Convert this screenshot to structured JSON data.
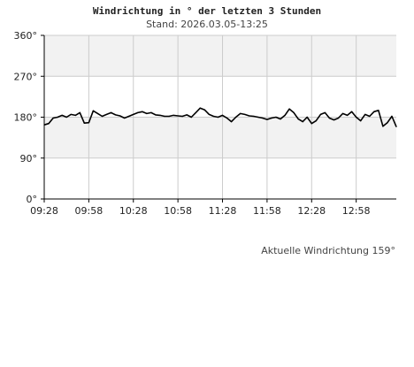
{
  "title": "Windrichtung in ° der letzten 3 Stunden",
  "subtitle": "Stand: 2026.03.05-13:25",
  "current_label": "Aktuelle Windrichtung 159°",
  "colors": {
    "band": "#f2f2f2",
    "grid": "#cccccc",
    "line": "#000000",
    "axis": "#000000"
  },
  "chart_data": {
    "type": "line",
    "title": "Windrichtung in ° der letzten 3 Stunden",
    "xlabel": "",
    "ylabel": "",
    "ylim": [
      0,
      360
    ],
    "yticks": [
      0,
      90,
      180,
      270,
      360
    ],
    "ytick_labels": [
      "0°",
      "90°",
      "180°",
      "270°",
      "360°"
    ],
    "xlim": [
      "09:28",
      "13:25"
    ],
    "xticks": [
      "09:28",
      "09:58",
      "10:28",
      "10:58",
      "11:28",
      "11:58",
      "12:28",
      "12:58"
    ],
    "grid": true,
    "series": [
      {
        "x": [
          "09:28",
          "09:31",
          "09:34",
          "09:37",
          "09:40",
          "09:43",
          "09:46",
          "09:49",
          "09:52",
          "09:55",
          "09:58",
          "10:01",
          "10:04",
          "10:07",
          "10:10",
          "10:13",
          "10:16",
          "10:19",
          "10:22",
          "10:25",
          "10:28",
          "10:31",
          "10:34",
          "10:37",
          "10:40",
          "10:43",
          "10:46",
          "10:49",
          "10:52",
          "10:55",
          "10:58",
          "11:01",
          "11:04",
          "11:07",
          "11:10",
          "11:13",
          "11:16",
          "11:19",
          "11:22",
          "11:25",
          "11:28",
          "11:31",
          "11:34",
          "11:37",
          "11:40",
          "11:43",
          "11:46",
          "11:49",
          "11:52",
          "11:55",
          "11:58",
          "12:01",
          "12:04",
          "12:07",
          "12:10",
          "12:13",
          "12:16",
          "12:19",
          "12:22",
          "12:25",
          "12:28",
          "12:31",
          "12:34",
          "12:37",
          "12:40",
          "12:43",
          "12:46",
          "12:49",
          "12:52",
          "12:55",
          "12:58",
          "13:01",
          "13:04",
          "13:07",
          "13:10",
          "13:13",
          "13:16",
          "13:19",
          "13:22",
          "13:25"
        ],
        "values": [
          163,
          166,
          178,
          180,
          184,
          180,
          186,
          184,
          190,
          167,
          168,
          194,
          188,
          182,
          186,
          190,
          185,
          183,
          178,
          182,
          186,
          190,
          192,
          188,
          190,
          185,
          184,
          182,
          182,
          184,
          183,
          182,
          185,
          180,
          190,
          200,
          196,
          186,
          182,
          180,
          184,
          178,
          170,
          180,
          188,
          186,
          183,
          182,
          180,
          178,
          175,
          178,
          180,
          176,
          184,
          198,
          190,
          176,
          170,
          180,
          166,
          172,
          186,
          190,
          178,
          174,
          178,
          188,
          184,
          192,
          180,
          172,
          186,
          182,
          192,
          195,
          160,
          168,
          182,
          159
        ]
      }
    ]
  }
}
